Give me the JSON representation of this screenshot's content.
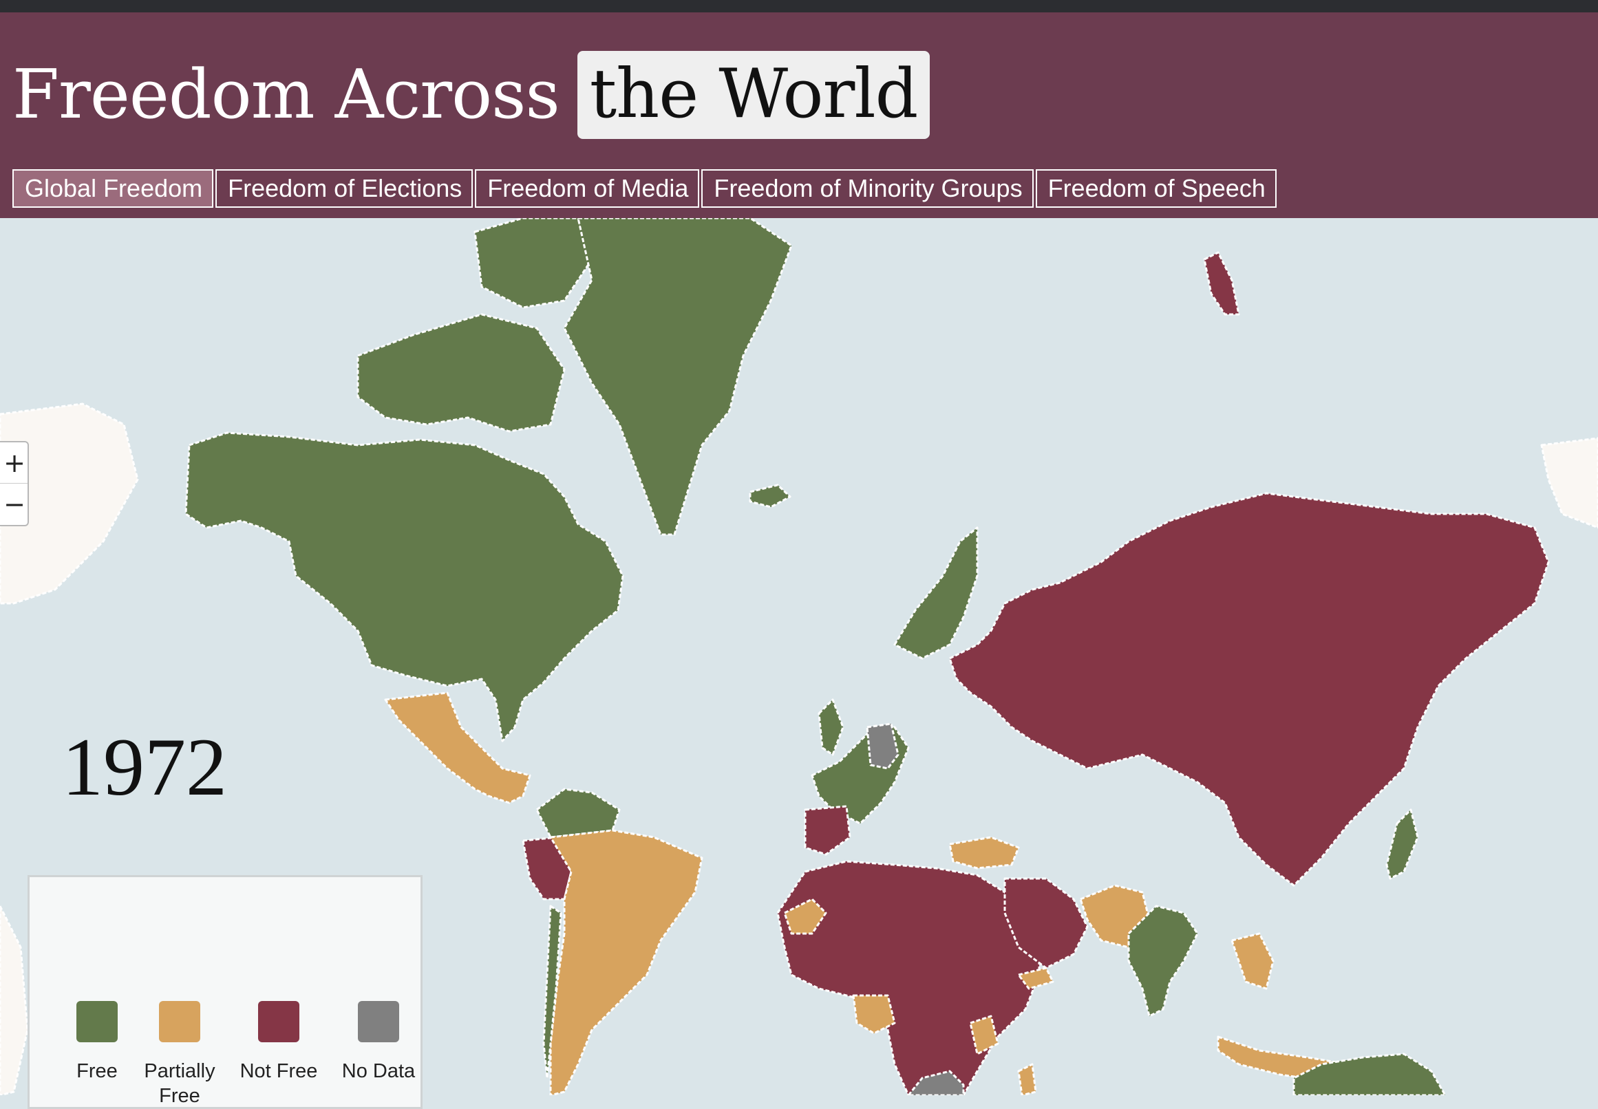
{
  "header": {
    "title_plain": "Freedom Across",
    "title_highlight": "the World"
  },
  "tabs": [
    {
      "label": "Global Freedom",
      "active": true
    },
    {
      "label": "Freedom of Elections",
      "active": false
    },
    {
      "label": "Freedom of Media",
      "active": false
    },
    {
      "label": "Freedom of Minority Groups",
      "active": false
    },
    {
      "label": "Freedom of Speech",
      "active": false
    }
  ],
  "zoom": {
    "in_label": "+",
    "out_label": "−"
  },
  "year": "1972",
  "legend": {
    "items": [
      {
        "label": "Free",
        "color": "#637a4b"
      },
      {
        "label": "Partially Free",
        "color": "#d7a35e"
      },
      {
        "label": "Not Free",
        "color": "#853646"
      },
      {
        "label": "No Data",
        "color": "#808080"
      }
    ]
  },
  "map": {
    "ocean_color": "#dae5e9",
    "land_unclassified_color": "#faf7f3",
    "border_color": "#ffffff",
    "regions": [
      {
        "name": "Alaska / Canada / USA",
        "status": "Free"
      },
      {
        "name": "Greenland",
        "status": "Free"
      },
      {
        "name": "Mexico / Central America",
        "status": "Partially Free"
      },
      {
        "name": "South America",
        "status": "Partially Free"
      },
      {
        "name": "Western Europe",
        "status": "Free"
      },
      {
        "name": "Soviet Union / East Asia",
        "status": "Not Free"
      },
      {
        "name": "Africa",
        "status": "Not Free"
      },
      {
        "name": "South Africa",
        "status": "No Data"
      },
      {
        "name": "India",
        "status": "Free"
      },
      {
        "name": "Australia / New Zealand",
        "status": "Free"
      }
    ]
  }
}
